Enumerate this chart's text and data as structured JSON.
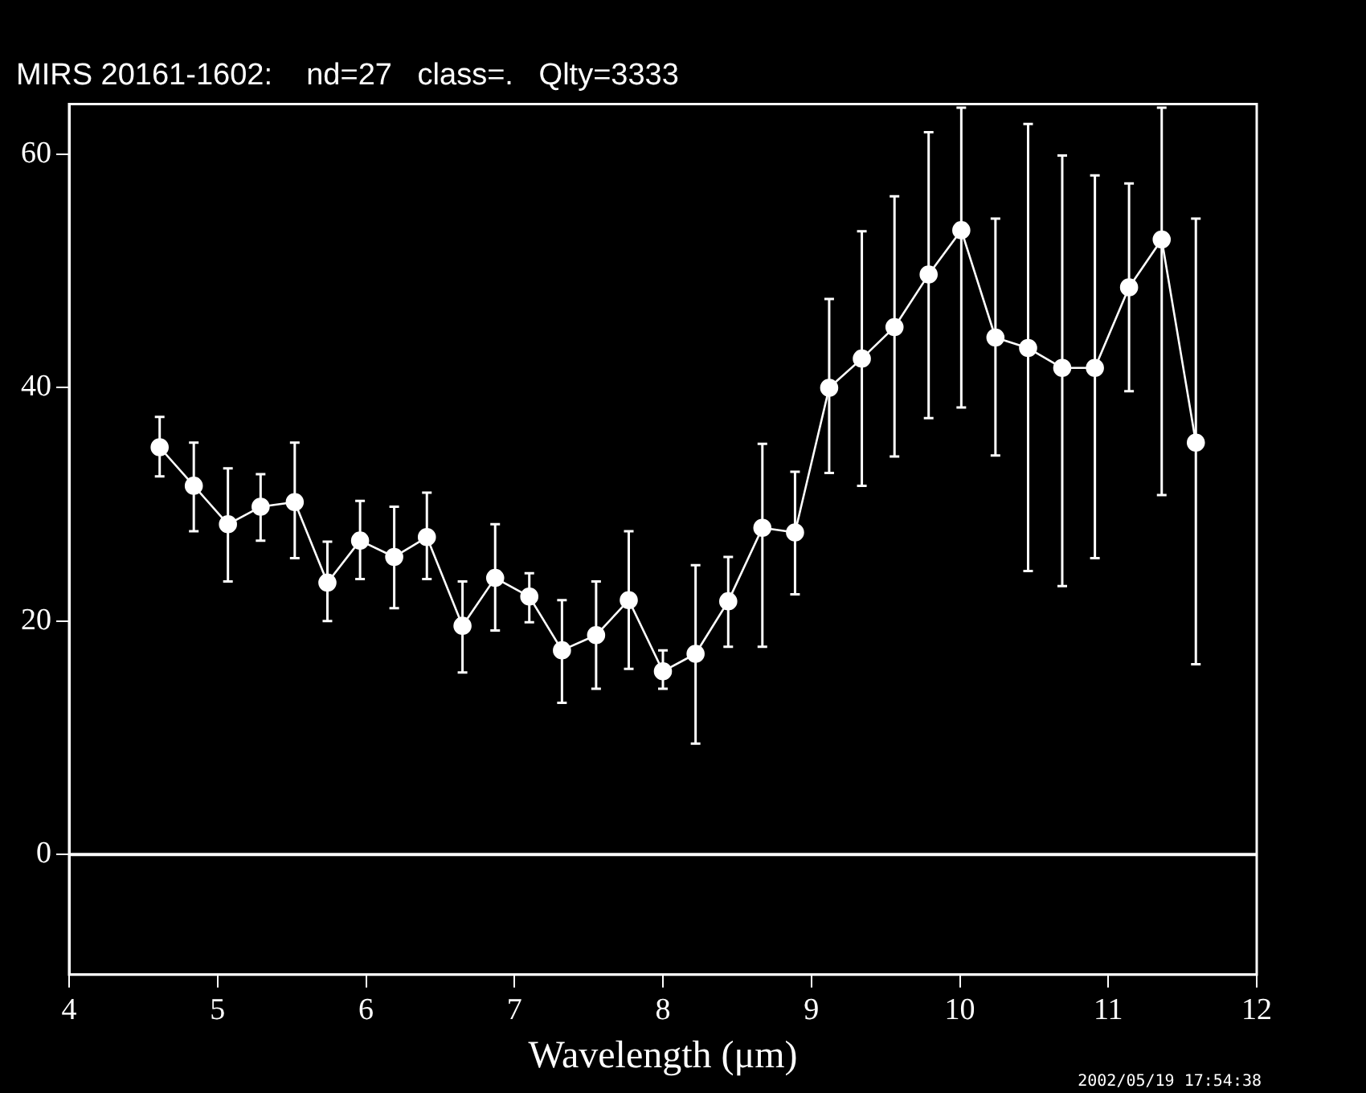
{
  "chart_data": {
    "type": "line",
    "title": "MIRS 20161-1602:    nd=27   class=.   Qlty=3333",
    "xlabel": "Wavelength (μm)",
    "x": [
      4.61,
      4.84,
      5.07,
      5.29,
      5.52,
      5.74,
      5.96,
      6.19,
      6.41,
      6.65,
      6.87,
      7.1,
      7.32,
      7.55,
      7.77,
      8.0,
      8.22,
      8.44,
      8.67,
      8.89,
      9.12,
      9.34,
      9.56,
      9.79,
      10.01,
      10.24,
      10.46,
      10.69,
      10.91,
      11.14,
      11.36,
      11.59
    ],
    "series": [
      {
        "color": "#ffffff",
        "values": [
          34.9,
          31.6,
          28.3,
          29.8,
          30.2,
          23.3,
          26.9,
          25.5,
          27.2,
          19.6,
          23.7,
          22.1,
          17.5,
          18.8,
          21.8,
          15.7,
          17.2,
          21.7,
          28.0,
          27.6,
          40.0,
          42.5,
          45.2,
          49.7,
          53.5,
          44.3,
          43.4,
          41.7,
          41.7,
          48.6,
          52.7,
          35.3
        ],
        "errors": [
          [
            32.4,
            37.5
          ],
          [
            27.7,
            35.3
          ],
          [
            23.4,
            33.1
          ],
          [
            26.9,
            32.6
          ],
          [
            25.4,
            35.3
          ],
          [
            20.0,
            26.8
          ],
          [
            23.6,
            30.3
          ],
          [
            21.1,
            29.8
          ],
          [
            23.6,
            31.0
          ],
          [
            15.6,
            23.4
          ],
          [
            19.2,
            28.3
          ],
          [
            19.9,
            24.1
          ],
          [
            13.0,
            21.8
          ],
          [
            14.2,
            23.4
          ],
          [
            15.9,
            27.7
          ],
          [
            14.2,
            17.5
          ],
          [
            9.5,
            24.8
          ],
          [
            17.8,
            25.5
          ],
          [
            17.8,
            35.2
          ],
          [
            22.3,
            32.8
          ],
          [
            32.7,
            47.6
          ],
          [
            31.6,
            53.4
          ],
          [
            34.1,
            56.4
          ],
          [
            37.4,
            61.9
          ],
          [
            38.3,
            64
          ],
          [
            34.2,
            54.5
          ],
          [
            24.3,
            62.6
          ],
          [
            23.0,
            59.9
          ],
          [
            25.4,
            58.2
          ],
          [
            39.7,
            57.5
          ],
          [
            30.8,
            64
          ],
          [
            16.3,
            54.5
          ]
        ]
      }
    ],
    "xlim": [
      4,
      12
    ],
    "xticks": [
      4,
      5,
      6,
      7,
      8,
      9,
      10,
      11,
      12
    ],
    "ylim": [
      -10.3,
      64.3
    ],
    "yticks": [
      0,
      20,
      40,
      60
    ],
    "ref_lines": [
      {
        "axis": "y",
        "value": 0,
        "color": "#ffffff"
      }
    ],
    "annotations": [
      "2002/05/19 17:54:38"
    ],
    "marker": "circle",
    "line_style": "solid",
    "grid": false,
    "legend": false
  }
}
